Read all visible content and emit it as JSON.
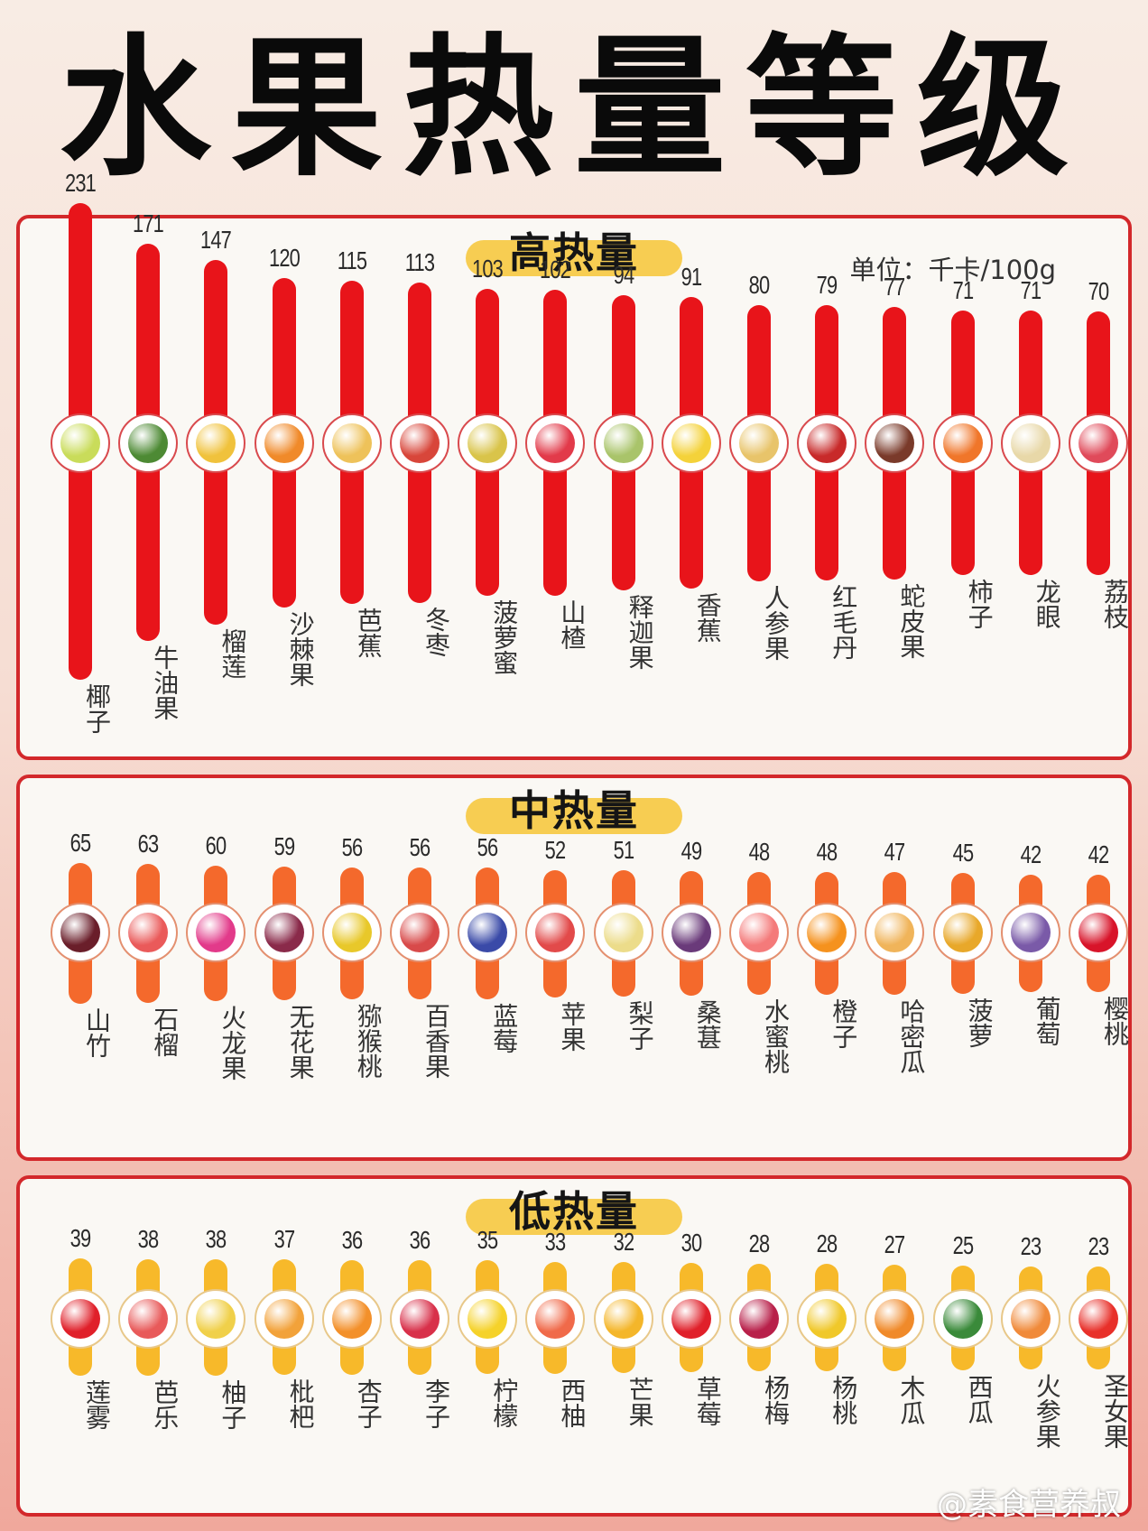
{
  "title": "水果热量等级",
  "unit_label": "单位：千卡/100g",
  "watermark": "@素食营养叔",
  "colors": {
    "border": "#d3282b",
    "badge": "#f7cd52",
    "high_bar": "#e8141a",
    "medium_bar": "#f4692c",
    "low_bar": "#f7b92a",
    "panel_bg": "#faf8f4"
  },
  "sections": [
    {
      "key": "high",
      "label": "高热量",
      "bar_color": "#e8141a",
      "ring_color": "#d94a4e",
      "items": [
        {
          "name": "椰子",
          "value": 231,
          "fruit_color": "#c9dc5a"
        },
        {
          "name": "牛油果",
          "value": 171,
          "fruit_color": "#4d8a34"
        },
        {
          "name": "榴莲",
          "value": 147,
          "fruit_color": "#f0c23c"
        },
        {
          "name": "沙棘果",
          "value": 120,
          "fruit_color": "#f08a2a"
        },
        {
          "name": "芭蕉",
          "value": 115,
          "fruit_color": "#eec25a"
        },
        {
          "name": "冬枣",
          "value": 113,
          "fruit_color": "#d8463a"
        },
        {
          "name": "菠萝蜜",
          "value": 103,
          "fruit_color": "#d9c44a"
        },
        {
          "name": "山楂",
          "value": 102,
          "fruit_color": "#e23a4a"
        },
        {
          "name": "释迦果",
          "value": 94,
          "fruit_color": "#a9c46a"
        },
        {
          "name": "香蕉",
          "value": 91,
          "fruit_color": "#f4d23a"
        },
        {
          "name": "人参果",
          "value": 80,
          "fruit_color": "#e8c46a"
        },
        {
          "name": "红毛丹",
          "value": 79,
          "fruit_color": "#c82a2a"
        },
        {
          "name": "蛇皮果",
          "value": 77,
          "fruit_color": "#7a3a2a"
        },
        {
          "name": "柿子",
          "value": 71,
          "fruit_color": "#f0762a"
        },
        {
          "name": "龙眼",
          "value": 71,
          "fruit_color": "#e8d8a8"
        },
        {
          "name": "荔枝",
          "value": 70,
          "fruit_color": "#e04a5a"
        }
      ]
    },
    {
      "key": "medium",
      "label": "中热量",
      "bar_color": "#f4692c",
      "ring_color": "#e49070",
      "items": [
        {
          "name": "山竹",
          "value": 65,
          "fruit_color": "#6a1e2a"
        },
        {
          "name": "石榴",
          "value": 63,
          "fruit_color": "#ea5a5a"
        },
        {
          "name": "火龙果",
          "value": 60,
          "fruit_color": "#e23a8a"
        },
        {
          "name": "无花果",
          "value": 59,
          "fruit_color": "#8a2a4a"
        },
        {
          "name": "猕猴桃",
          "value": 56,
          "fruit_color": "#e8c82a"
        },
        {
          "name": "百香果",
          "value": 56,
          "fruit_color": "#d84a4a"
        },
        {
          "name": "蓝莓",
          "value": 56,
          "fruit_color": "#3a4aa8"
        },
        {
          "name": "苹果",
          "value": 52,
          "fruit_color": "#e24a4a"
        },
        {
          "name": "梨子",
          "value": 51,
          "fruit_color": "#ecdc8a"
        },
        {
          "name": "桑葚",
          "value": 49,
          "fruit_color": "#6a3a7a"
        },
        {
          "name": "水蜜桃",
          "value": 48,
          "fruit_color": "#f47a7a"
        },
        {
          "name": "橙子",
          "value": 48,
          "fruit_color": "#f5921e"
        },
        {
          "name": "哈密瓜",
          "value": 47,
          "fruit_color": "#f0b45a"
        },
        {
          "name": "菠萝",
          "value": 45,
          "fruit_color": "#e8a82a"
        },
        {
          "name": "葡萄",
          "value": 42,
          "fruit_color": "#7a5aa8"
        },
        {
          "name": "樱桃",
          "value": 42,
          "fruit_color": "#d8142a"
        }
      ]
    },
    {
      "key": "low",
      "label": "低热量",
      "bar_color": "#f7b92a",
      "ring_color": "#e8c88a",
      "items": [
        {
          "name": "莲雾",
          "value": 39,
          "fruit_color": "#e0202a"
        },
        {
          "name": "芭乐",
          "value": 38,
          "fruit_color": "#e85a5a"
        },
        {
          "name": "柚子",
          "value": 38,
          "fruit_color": "#f0d04a"
        },
        {
          "name": "枇杷",
          "value": 37,
          "fruit_color": "#f2a23a"
        },
        {
          "name": "杏子",
          "value": 36,
          "fruit_color": "#f3902a"
        },
        {
          "name": "李子",
          "value": 36,
          "fruit_color": "#d8304a"
        },
        {
          "name": "柠檬",
          "value": 35,
          "fruit_color": "#f5d22a"
        },
        {
          "name": "西柚",
          "value": 33,
          "fruit_color": "#f06a4a"
        },
        {
          "name": "芒果",
          "value": 32,
          "fruit_color": "#f4b62a"
        },
        {
          "name": "草莓",
          "value": 30,
          "fruit_color": "#e0202a"
        },
        {
          "name": "杨梅",
          "value": 28,
          "fruit_color": "#b8204a"
        },
        {
          "name": "杨桃",
          "value": 28,
          "fruit_color": "#f0c82a"
        },
        {
          "name": "木瓜",
          "value": 27,
          "fruit_color": "#f08a2a"
        },
        {
          "name": "西瓜",
          "value": 25,
          "fruit_color": "#3a8a3a"
        },
        {
          "name": "火参果",
          "value": 23,
          "fruit_color": "#f08a3a"
        },
        {
          "name": "圣女果",
          "value": 23,
          "fruit_color": "#e8302a"
        }
      ]
    }
  ],
  "chart_data": {
    "type": "bar",
    "title": "水果热量等级",
    "ylabel": "单位：千卡/100g",
    "series": [
      {
        "name": "高热量",
        "categories": [
          "椰子",
          "牛油果",
          "榴莲",
          "沙棘果",
          "芭蕉",
          "冬枣",
          "菠萝蜜",
          "山楂",
          "释迦果",
          "香蕉",
          "人参果",
          "红毛丹",
          "蛇皮果",
          "柿子",
          "龙眼",
          "荔枝"
        ],
        "values": [
          231,
          171,
          147,
          120,
          115,
          113,
          103,
          102,
          94,
          91,
          80,
          79,
          77,
          71,
          71,
          70
        ]
      },
      {
        "name": "中热量",
        "categories": [
          "山竹",
          "石榴",
          "火龙果",
          "无花果",
          "猕猴桃",
          "百香果",
          "蓝莓",
          "苹果",
          "梨子",
          "桑葚",
          "水蜜桃",
          "橙子",
          "哈密瓜",
          "菠萝",
          "葡萄",
          "樱桃"
        ],
        "values": [
          65,
          63,
          60,
          59,
          56,
          56,
          56,
          52,
          51,
          49,
          48,
          48,
          47,
          45,
          42,
          42
        ]
      },
      {
        "name": "低热量",
        "categories": [
          "莲雾",
          "芭乐",
          "柚子",
          "枇杷",
          "杏子",
          "李子",
          "柠檬",
          "西柚",
          "芒果",
          "草莓",
          "杨梅",
          "杨桃",
          "木瓜",
          "西瓜",
          "火参果",
          "圣女果"
        ],
        "values": [
          39,
          38,
          38,
          37,
          36,
          36,
          35,
          33,
          32,
          30,
          28,
          28,
          27,
          25,
          23,
          23
        ]
      }
    ]
  }
}
